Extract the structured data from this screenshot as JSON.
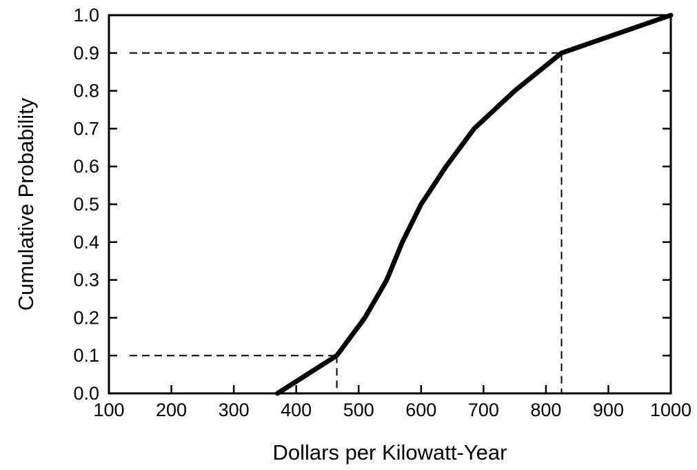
{
  "chart_data": {
    "type": "line",
    "title": "",
    "xlabel": "Dollars per Kilowatt-Year",
    "ylabel": "Cumulative Probability",
    "xlim": [
      100,
      1000
    ],
    "ylim": [
      0.0,
      1.0
    ],
    "x_ticks": [
      100,
      200,
      300,
      400,
      500,
      600,
      700,
      800,
      900,
      1000
    ],
    "y_ticks": [
      "0.0",
      "0.1",
      "0.2",
      "0.3",
      "0.4",
      "0.5",
      "0.6",
      "0.7",
      "0.8",
      "0.9",
      "1.0"
    ],
    "grid": false,
    "legend": "none",
    "series": [
      {
        "x": [
          370,
          465,
          510,
          545,
          570,
          600,
          640,
          685,
          750,
          825,
          1000
        ],
        "y": [
          0.0,
          0.1,
          0.2,
          0.3,
          0.4,
          0.5,
          0.6,
          0.7,
          0.8,
          0.9,
          1.0
        ]
      }
    ],
    "reference_lines": [
      {
        "x": 465,
        "y": 0.1,
        "style": "dashed"
      },
      {
        "x": 825,
        "y": 0.9,
        "style": "dashed"
      }
    ],
    "colors": {
      "line": "#000000",
      "axis": "#000000"
    }
  }
}
